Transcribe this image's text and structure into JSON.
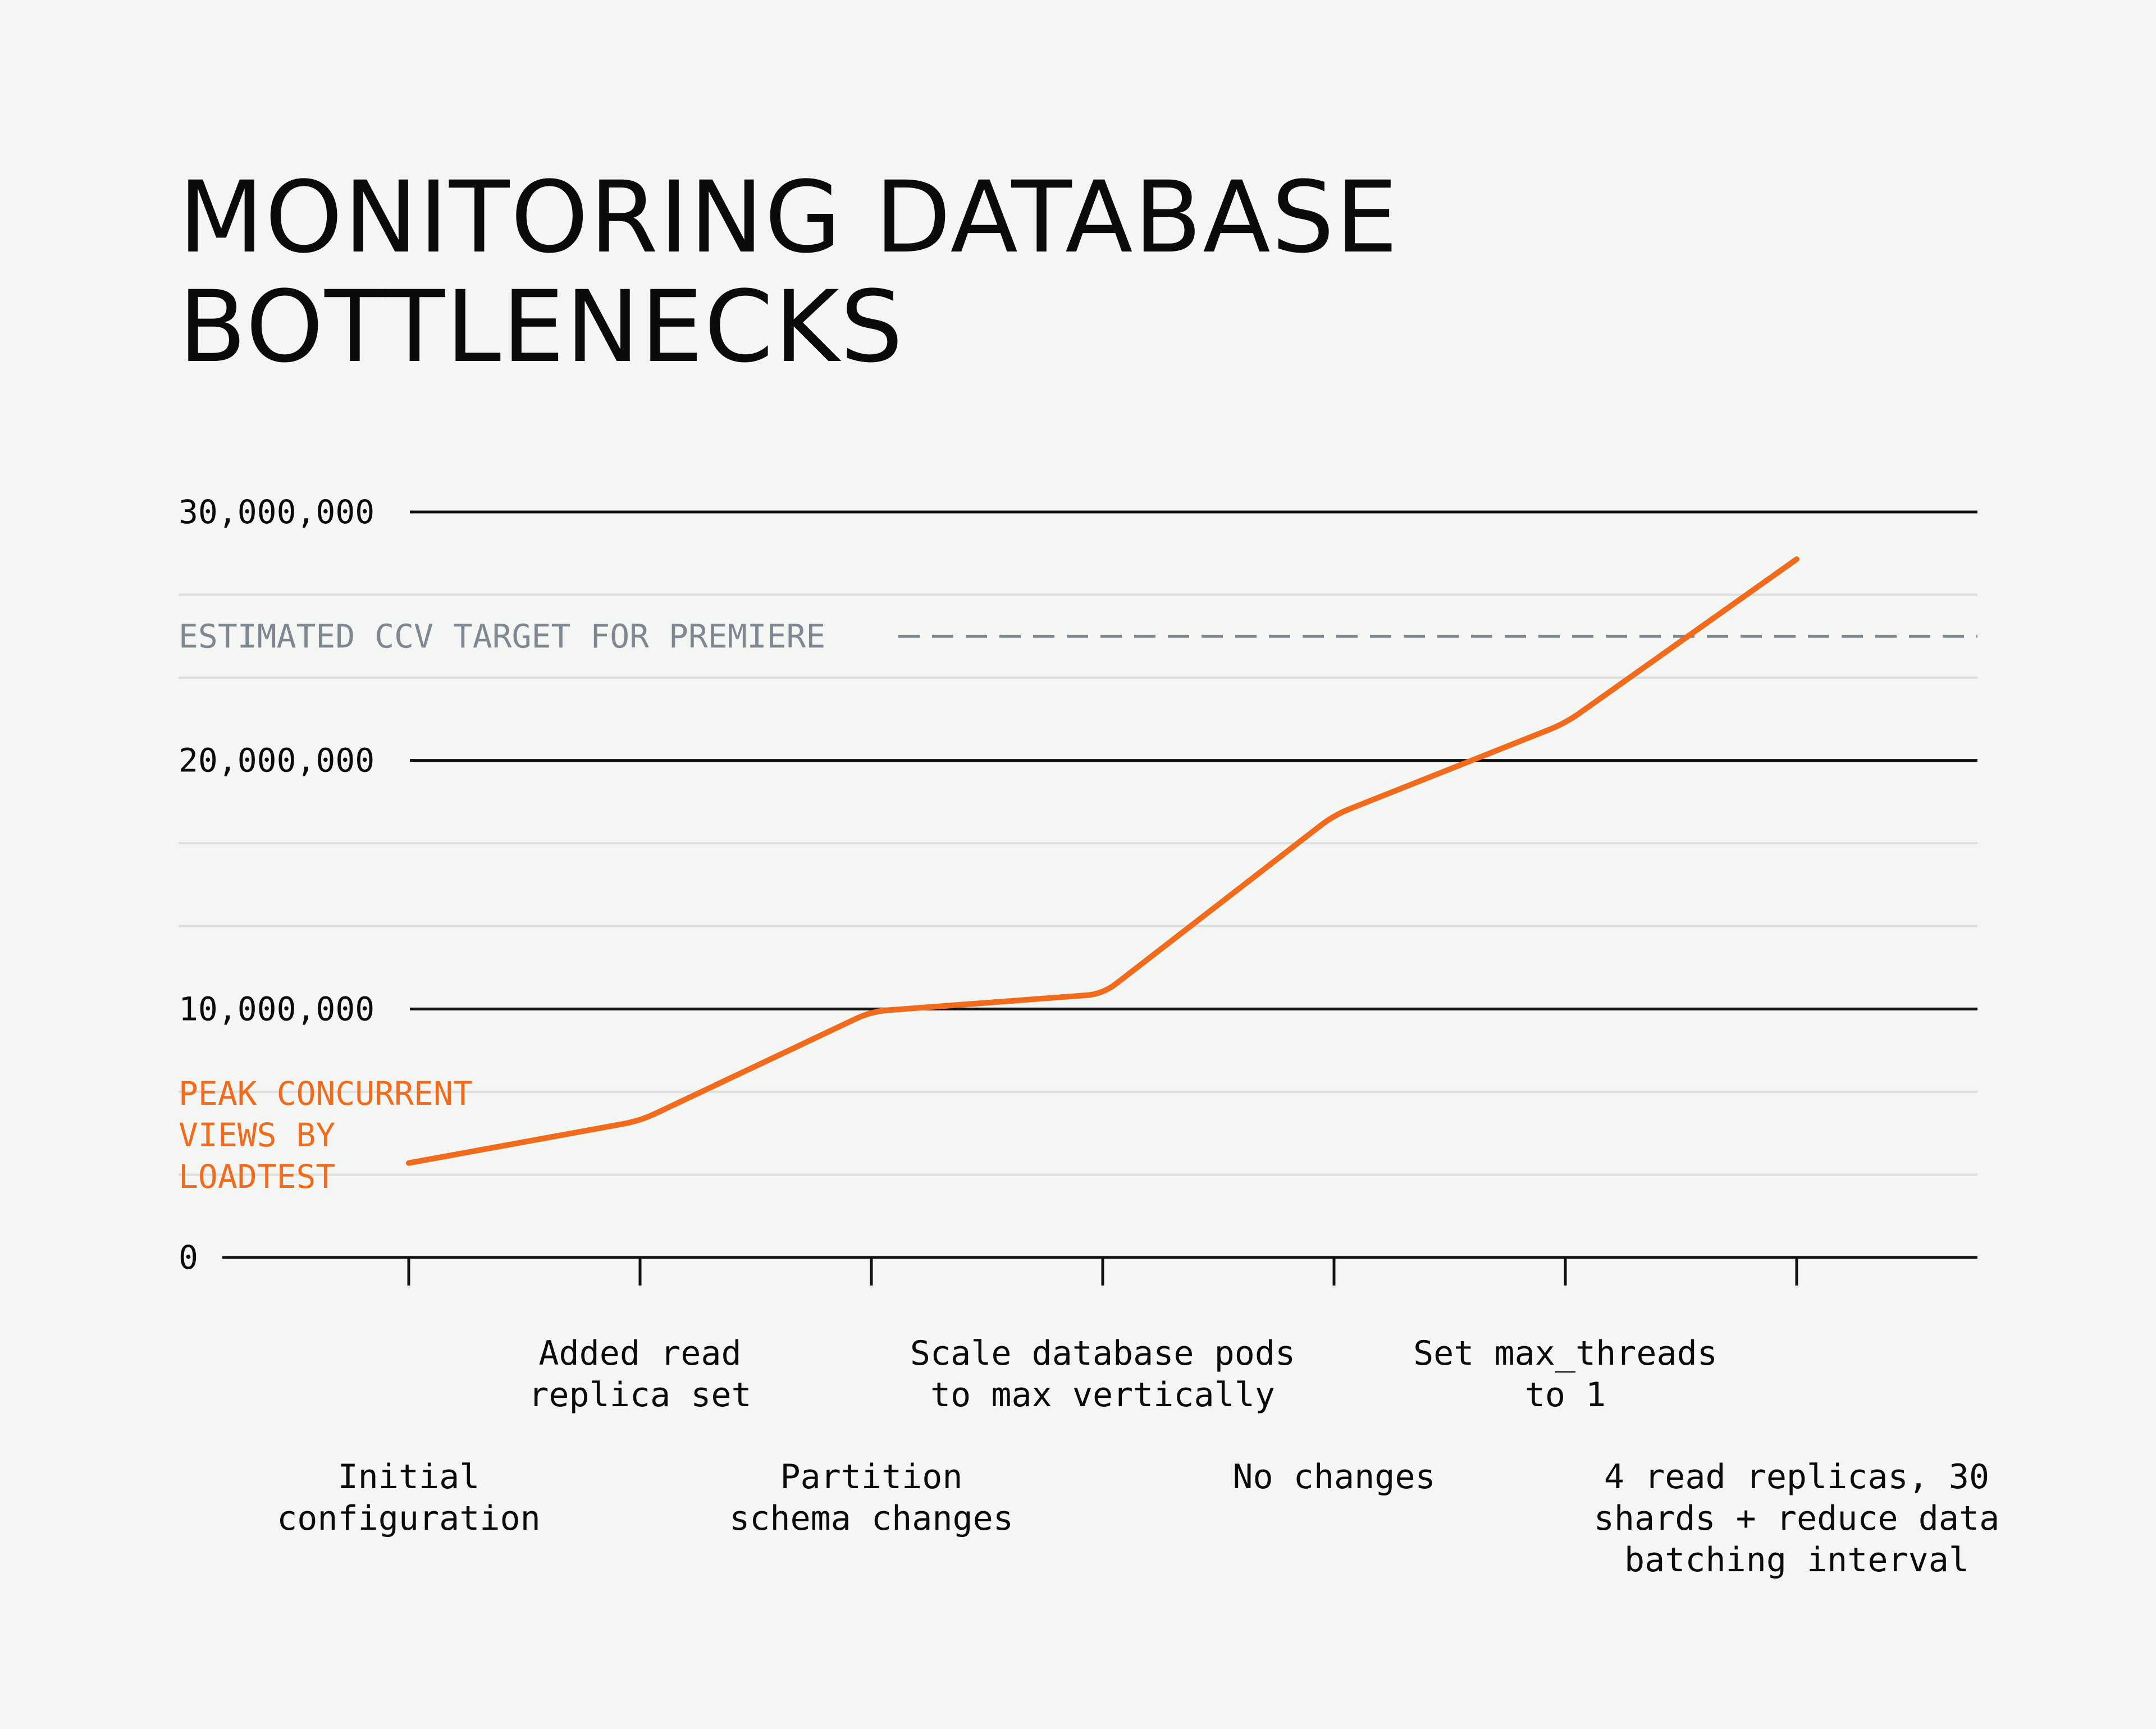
{
  "title_lines": [
    "MONITORING DATABASE",
    "BOTTLENECKS"
  ],
  "colors": {
    "background": "#f4f6f3",
    "series": "#f26a1b",
    "target": "#7f8791",
    "grid_major": "#111111",
    "grid_minor": "#dcdfdc",
    "text": "#0b0b0b"
  },
  "chart_data": {
    "type": "line",
    "title": "MONITORING DATABASE BOTTLENECKS",
    "xlabel": "",
    "ylabel": "",
    "ylim": [
      0,
      30000000
    ],
    "yticks": [
      {
        "value": 0,
        "label": "0"
      },
      {
        "value": 10000000,
        "label": "10,000,000"
      },
      {
        "value": 20000000,
        "label": "20,000,000"
      },
      {
        "value": 30000000,
        "label": "30,000,000"
      }
    ],
    "minor_grid_step": 3333333,
    "categories": [
      [
        "Initial",
        "configuration"
      ],
      [
        "Added read",
        "replica set"
      ],
      [
        "Partition",
        "schema changes"
      ],
      [
        "Scale database pods",
        "to max vertically"
      ],
      [
        "No changes"
      ],
      [
        "Set max_threads",
        "to 1"
      ],
      [
        "4 read replicas, 30",
        "shards + reduce data",
        "batching interval"
      ]
    ],
    "series": [
      {
        "label_lines": [
          "PEAK CONCURRENT",
          "VIEWS BY",
          "LOADTEST"
        ],
        "color": "#f26a1b",
        "values": [
          3800000,
          5500000,
          9900000,
          10600000,
          17800000,
          21500000,
          28100000
        ]
      }
    ],
    "reference_line": {
      "label": "ESTIMATED CCV TARGET FOR PREMIERE",
      "value": 25000000,
      "style": "dashed",
      "color": "#7f8791"
    },
    "grid": true,
    "legend": "inline-left"
  }
}
